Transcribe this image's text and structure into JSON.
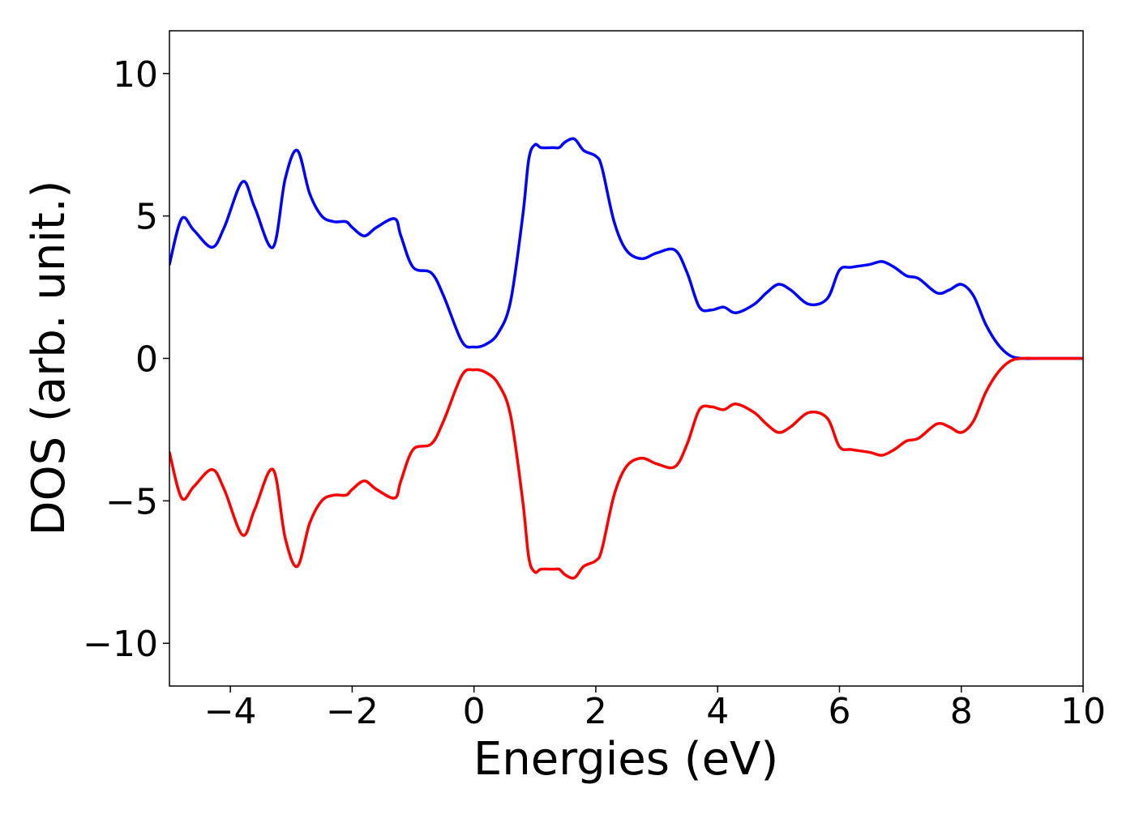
{
  "chart_data": {
    "type": "line",
    "title": "",
    "xlabel": "Energies (eV)",
    "ylabel": "DOS (arb. unit.)",
    "xlim": [
      -5,
      10
    ],
    "ylim": [
      -11.5,
      11.5
    ],
    "grid": false,
    "legend": "none",
    "xticks": [
      -4,
      -2,
      0,
      2,
      4,
      6,
      8,
      10
    ],
    "xtick_labels": [
      "−4",
      "−2",
      "0",
      "2",
      "4",
      "6",
      "8",
      "10"
    ],
    "yticks": [
      -10,
      -5,
      0,
      5,
      10
    ],
    "ytick_labels": [
      "−10",
      "−5",
      "0",
      "5",
      "10"
    ],
    "series": [
      {
        "color": "#0000ff",
        "x": [
          -5.0,
          -4.8,
          -4.6,
          -4.3,
          -4.1,
          -3.8,
          -3.6,
          -3.3,
          -3.1,
          -2.9,
          -2.7,
          -2.5,
          -2.3,
          -2.1,
          -2.0,
          -1.8,
          -1.6,
          -1.3,
          -1.2,
          -1.0,
          -0.7,
          -0.5,
          -0.2,
          0.0,
          0.2,
          0.4,
          0.6,
          0.8,
          0.9,
          1.0,
          1.1,
          1.3,
          1.4,
          1.5,
          1.65,
          1.8,
          2.0,
          2.1,
          2.3,
          2.5,
          2.75,
          3.0,
          3.3,
          3.5,
          3.7,
          3.9,
          4.1,
          4.3,
          4.6,
          4.8,
          5.0,
          5.2,
          5.5,
          5.8,
          6.0,
          6.2,
          6.5,
          6.7,
          6.9,
          7.1,
          7.3,
          7.6,
          7.8,
          8.0,
          8.2,
          8.4,
          8.6,
          8.8,
          9.0,
          9.3,
          10.0
        ],
        "values": [
          3.3,
          4.9,
          4.5,
          3.9,
          4.6,
          6.2,
          5.3,
          3.9,
          6.3,
          7.3,
          5.8,
          5.0,
          4.8,
          4.8,
          4.6,
          4.3,
          4.6,
          4.9,
          4.3,
          3.2,
          3.0,
          2.2,
          0.6,
          0.4,
          0.5,
          0.9,
          2.0,
          5.0,
          7.0,
          7.5,
          7.4,
          7.4,
          7.4,
          7.6,
          7.7,
          7.3,
          7.1,
          6.7,
          4.8,
          3.8,
          3.5,
          3.7,
          3.8,
          3.0,
          1.8,
          1.7,
          1.8,
          1.6,
          1.9,
          2.3,
          2.6,
          2.4,
          1.9,
          2.1,
          3.1,
          3.2,
          3.3,
          3.4,
          3.2,
          2.9,
          2.8,
          2.3,
          2.4,
          2.6,
          2.2,
          1.2,
          0.5,
          0.1,
          0.0,
          0.0,
          0.0
        ]
      },
      {
        "color": "#ff0000",
        "x": [
          -5.0,
          -4.8,
          -4.6,
          -4.3,
          -4.1,
          -3.8,
          -3.6,
          -3.3,
          -3.1,
          -2.9,
          -2.7,
          -2.5,
          -2.3,
          -2.1,
          -2.0,
          -1.8,
          -1.6,
          -1.3,
          -1.2,
          -1.0,
          -0.7,
          -0.5,
          -0.2,
          0.0,
          0.2,
          0.4,
          0.6,
          0.8,
          0.9,
          1.0,
          1.1,
          1.3,
          1.4,
          1.5,
          1.65,
          1.8,
          2.0,
          2.1,
          2.3,
          2.5,
          2.75,
          3.0,
          3.3,
          3.5,
          3.7,
          3.9,
          4.1,
          4.3,
          4.6,
          4.8,
          5.0,
          5.2,
          5.5,
          5.8,
          6.0,
          6.2,
          6.5,
          6.7,
          6.9,
          7.1,
          7.3,
          7.6,
          7.8,
          8.0,
          8.2,
          8.4,
          8.6,
          8.8,
          9.0,
          9.3,
          10.0
        ],
        "values": [
          -3.3,
          -4.9,
          -4.5,
          -3.9,
          -4.6,
          -6.2,
          -5.3,
          -3.9,
          -6.3,
          -7.3,
          -5.8,
          -5.0,
          -4.8,
          -4.8,
          -4.6,
          -4.3,
          -4.6,
          -4.9,
          -4.3,
          -3.2,
          -3.0,
          -2.2,
          -0.6,
          -0.4,
          -0.5,
          -0.9,
          -2.0,
          -5.0,
          -7.0,
          -7.5,
          -7.4,
          -7.4,
          -7.4,
          -7.6,
          -7.7,
          -7.3,
          -7.1,
          -6.7,
          -4.8,
          -3.8,
          -3.5,
          -3.7,
          -3.8,
          -3.0,
          -1.8,
          -1.7,
          -1.8,
          -1.6,
          -1.9,
          -2.3,
          -2.6,
          -2.4,
          -1.9,
          -2.1,
          -3.1,
          -3.2,
          -3.3,
          -3.4,
          -3.2,
          -2.9,
          -2.8,
          -2.3,
          -2.4,
          -2.6,
          -2.2,
          -1.2,
          -0.5,
          -0.1,
          0.0,
          0.0,
          0.0
        ]
      }
    ]
  }
}
